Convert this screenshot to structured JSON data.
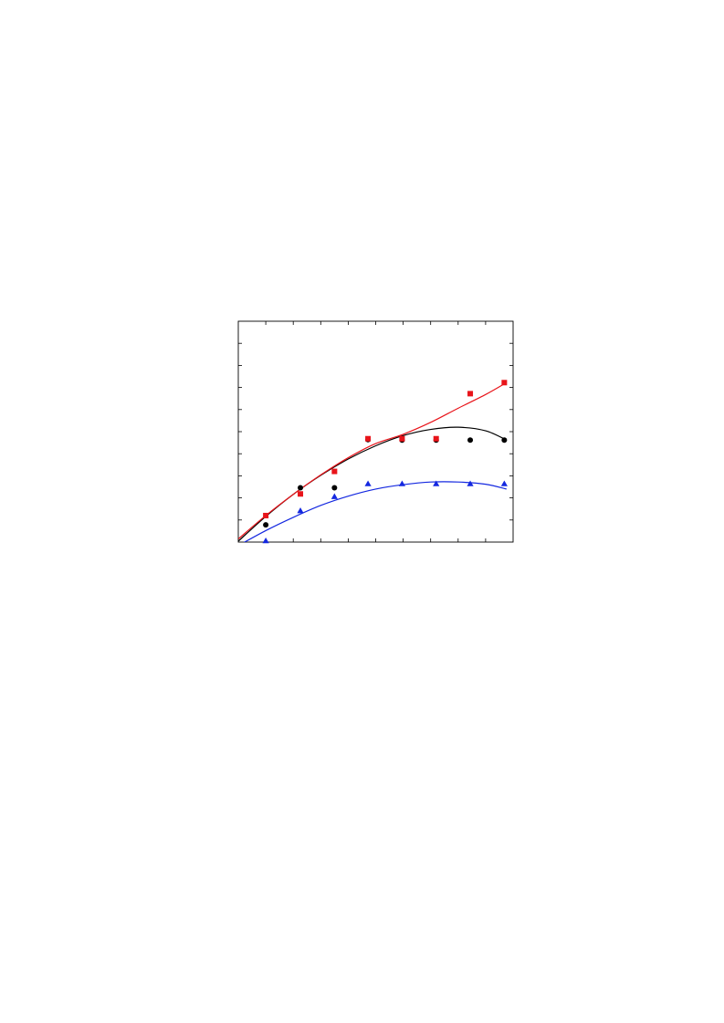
{
  "chart_data": {
    "type": "scatter",
    "title": "",
    "xlabel": "",
    "ylabel": "",
    "xlim": [
      0,
      5
    ],
    "ylim": [
      0,
      5
    ],
    "x_ticks": [
      0,
      0.5,
      1,
      1.5,
      2,
      2.5,
      3,
      3.5,
      4,
      4.5,
      5
    ],
    "y_ticks": [
      0,
      0.5,
      1,
      1.5,
      2,
      2.5,
      3,
      3.5,
      4,
      4.5,
      5
    ],
    "grid": false,
    "legend": "none",
    "series": [
      {
        "marker": "circle",
        "color": "#000000",
        "x": [
          0.5,
          1.13,
          1.75,
          2.36,
          2.98,
          3.6,
          4.22,
          4.84
        ],
        "y": [
          0.39,
          1.23,
          1.23,
          2.32,
          2.31,
          2.31,
          2.31,
          2.31
        ],
        "fit": {
          "color": "#000000",
          "x": [
            0,
            0.5,
            1,
            1.5,
            2,
            2.5,
            3,
            3.5,
            4,
            4.5,
            4.88
          ],
          "y": [
            0.02,
            0.58,
            1.08,
            1.51,
            1.88,
            2.18,
            2.41,
            2.55,
            2.6,
            2.52,
            2.31
          ]
        }
      },
      {
        "marker": "square",
        "color": "#e8141a",
        "x": [
          0.5,
          1.13,
          1.75,
          2.36,
          2.98,
          3.6,
          4.22,
          4.84
        ],
        "y": [
          0.6,
          1.09,
          1.6,
          2.34,
          2.34,
          2.34,
          3.36,
          3.61
        ],
        "fit": {
          "color": "#e8141a",
          "x": [
            0,
            0.5,
            1,
            1.5,
            2,
            2.5,
            3,
            3.5,
            4,
            4.5,
            4.88
          ],
          "y": [
            0.07,
            0.6,
            1.08,
            1.52,
            1.91,
            2.23,
            2.44,
            2.71,
            3.03,
            3.34,
            3.61
          ]
        }
      },
      {
        "marker": "triangle",
        "color": "#1428e0",
        "x": [
          0.5,
          1.13,
          1.75,
          2.36,
          2.98,
          3.6,
          4.22,
          4.84
        ],
        "y": [
          0.03,
          0.71,
          1.03,
          1.32,
          1.32,
          1.32,
          1.32,
          1.32
        ],
        "fit": {
          "color": "#1428e0",
          "x": [
            0,
            0.5,
            1,
            1.5,
            2,
            2.5,
            3,
            3.5,
            4,
            4.5,
            4.88
          ],
          "y": [
            -0.08,
            0.26,
            0.56,
            0.83,
            1.04,
            1.2,
            1.3,
            1.36,
            1.36,
            1.31,
            1.2
          ]
        }
      }
    ]
  }
}
